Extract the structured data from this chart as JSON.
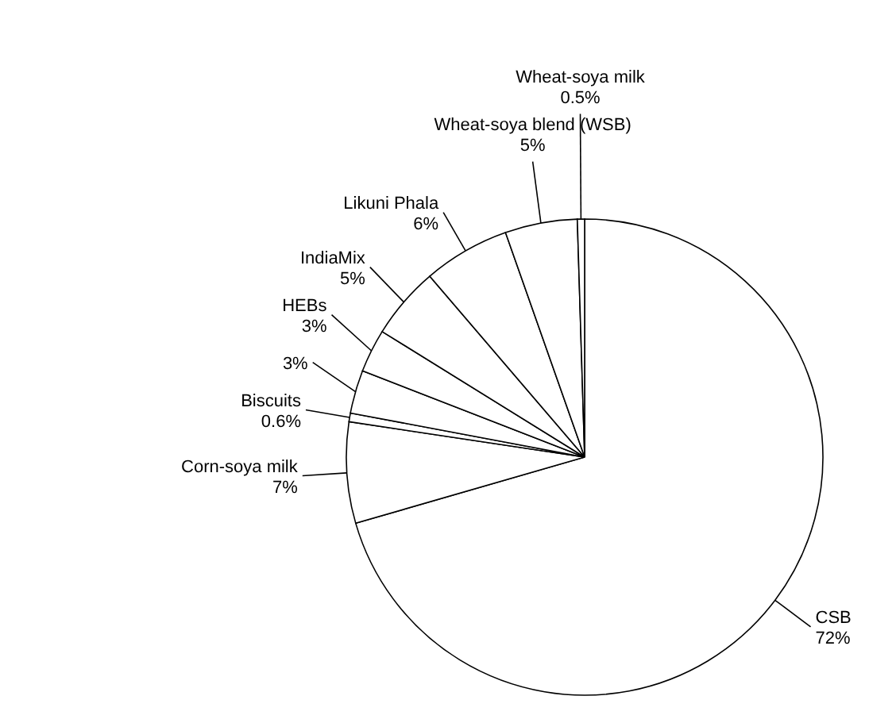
{
  "chart_data": {
    "type": "pie",
    "categories": [
      "CSB",
      "Corn-soya milk",
      "Biscuits",
      null,
      "HEBs",
      "IndiaMix",
      "Likuni Phala",
      "Wheat-soya blend (WSB)",
      "Wheat-soya milk"
    ],
    "values": [
      72,
      7,
      0.6,
      3,
      3,
      5,
      6,
      5,
      0.5
    ],
    "value_labels": [
      "72%",
      "7%",
      "0.6%",
      "3%",
      "3%",
      "5%",
      "6%",
      "5%",
      "0.5%"
    ],
    "colors": [
      "#ffffff",
      "#ffffff",
      "#ffffff",
      "#ffffff",
      "#ffffff",
      "#ffffff",
      "#ffffff",
      "#ffffff",
      "#ffffff"
    ]
  }
}
